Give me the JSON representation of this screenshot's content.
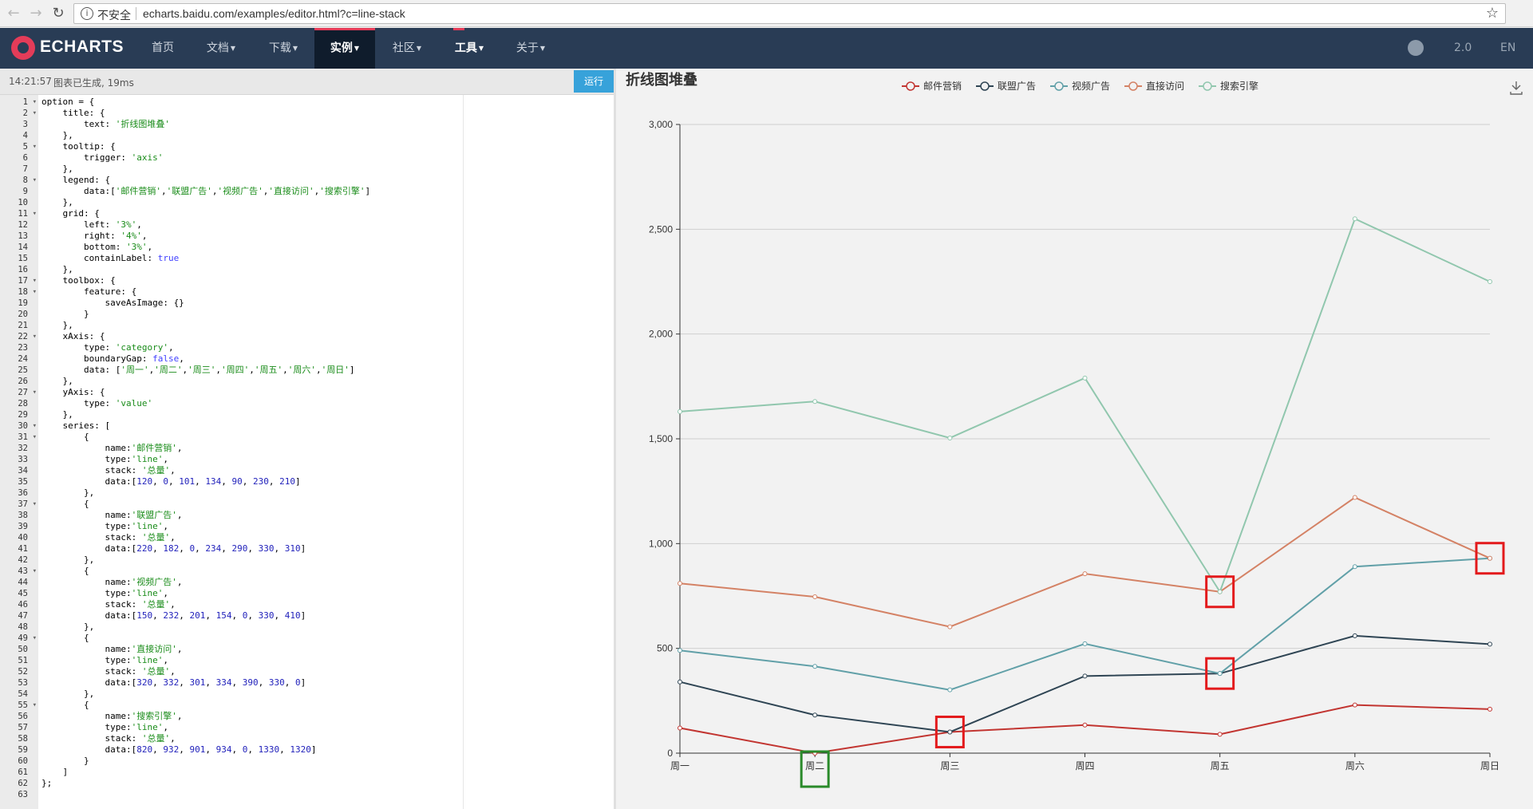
{
  "browser": {
    "secure_label": "不安全",
    "url": "echarts.baidu.com/examples/editor.html?c=line-stack"
  },
  "nav": {
    "logo": "ECHARTS",
    "items": [
      "首页",
      "文档",
      "下载",
      "实例",
      "社区",
      "工具",
      "关于"
    ],
    "active": "实例",
    "version": "2.0",
    "lang": "EN"
  },
  "editor": {
    "time": "14:21:57",
    "status": "图表已生成, 19ms",
    "run_label": "运行",
    "current_line": 4,
    "fold_lines": [
      1,
      2,
      5,
      8,
      11,
      17,
      18,
      22,
      27,
      30,
      31,
      37,
      43,
      49,
      55
    ],
    "lines": [
      "option = {",
      "    title: {",
      "        text: '折线图堆叠'",
      "    },",
      "    tooltip: {",
      "        trigger: 'axis'",
      "    },",
      "    legend: {",
      "        data:['邮件营销','联盟广告','视频广告','直接访问','搜索引擎']",
      "    },",
      "    grid: {",
      "        left: '3%',",
      "        right: '4%',",
      "        bottom: '3%',",
      "        containLabel: true",
      "    },",
      "    toolbox: {",
      "        feature: {",
      "            saveAsImage: {}",
      "        }",
      "    },",
      "    xAxis: {",
      "        type: 'category',",
      "        boundaryGap: false,",
      "        data: ['周一','周二','周三','周四','周五','周六','周日']",
      "    },",
      "    yAxis: {",
      "        type: 'value'",
      "    },",
      "    series: [",
      "        {",
      "            name:'邮件营销',",
      "            type:'line',",
      "            stack: '总量',",
      "            data:[120, 0, 101, 134, 90, 230, 210]",
      "        },",
      "        {",
      "            name:'联盟广告',",
      "            type:'line',",
      "            stack: '总量',",
      "            data:[220, 182, 0, 234, 290, 330, 310]",
      "        },",
      "        {",
      "            name:'视频广告',",
      "            type:'line',",
      "            stack: '总量',",
      "            data:[150, 232, 201, 154, 0, 330, 410]",
      "        },",
      "        {",
      "            name:'直接访问',",
      "            type:'line',",
      "            stack: '总量',",
      "            data:[320, 332, 301, 334, 390, 330, 0]",
      "        },",
      "        {",
      "            name:'搜索引擎',",
      "            type:'line',",
      "            stack: '总量',",
      "            data:[820, 932, 901, 934, 0, 1330, 1320]",
      "        }",
      "    ]",
      "};",
      ""
    ]
  },
  "chart_data": {
    "type": "line",
    "title": "折线图堆叠",
    "stacked": true,
    "legend_position": "top-center",
    "grid": true,
    "categories": [
      "周一",
      "周二",
      "周三",
      "周四",
      "周五",
      "周六",
      "周日"
    ],
    "ylim": [
      0,
      3000
    ],
    "yticks": [
      0,
      500,
      1000,
      1500,
      2000,
      2500,
      3000
    ],
    "ytick_labels": [
      "0",
      "500",
      "1,000",
      "1,500",
      "2,000",
      "2,500",
      "3,000"
    ],
    "series": [
      {
        "name": "邮件营销",
        "color": "#c23531",
        "values": [
          120,
          0,
          101,
          134,
          90,
          230,
          210
        ]
      },
      {
        "name": "联盟广告",
        "color": "#2f4554",
        "values": [
          220,
          182,
          0,
          234,
          290,
          330,
          310
        ]
      },
      {
        "name": "视频广告",
        "color": "#61a0a8",
        "values": [
          150,
          232,
          201,
          154,
          0,
          330,
          410
        ]
      },
      {
        "name": "直接访问",
        "color": "#d48265",
        "values": [
          320,
          332,
          301,
          334,
          390,
          330,
          0
        ]
      },
      {
        "name": "搜索引擎",
        "color": "#91c7ae",
        "values": [
          820,
          932,
          901,
          934,
          0,
          1330,
          1320
        ]
      }
    ],
    "annotations": [
      {
        "color": "#e31a1c",
        "category": "周三",
        "stack_value": 101
      },
      {
        "color": "#e31a1c",
        "category": "周五",
        "stack_value": 380
      },
      {
        "color": "#e31a1c",
        "category": "周五",
        "stack_value": 770
      },
      {
        "color": "#e31a1c",
        "category": "周日",
        "stack_value": 930
      },
      {
        "color": "#2a8a2a",
        "category": "周二",
        "stack_value": 0
      }
    ]
  }
}
